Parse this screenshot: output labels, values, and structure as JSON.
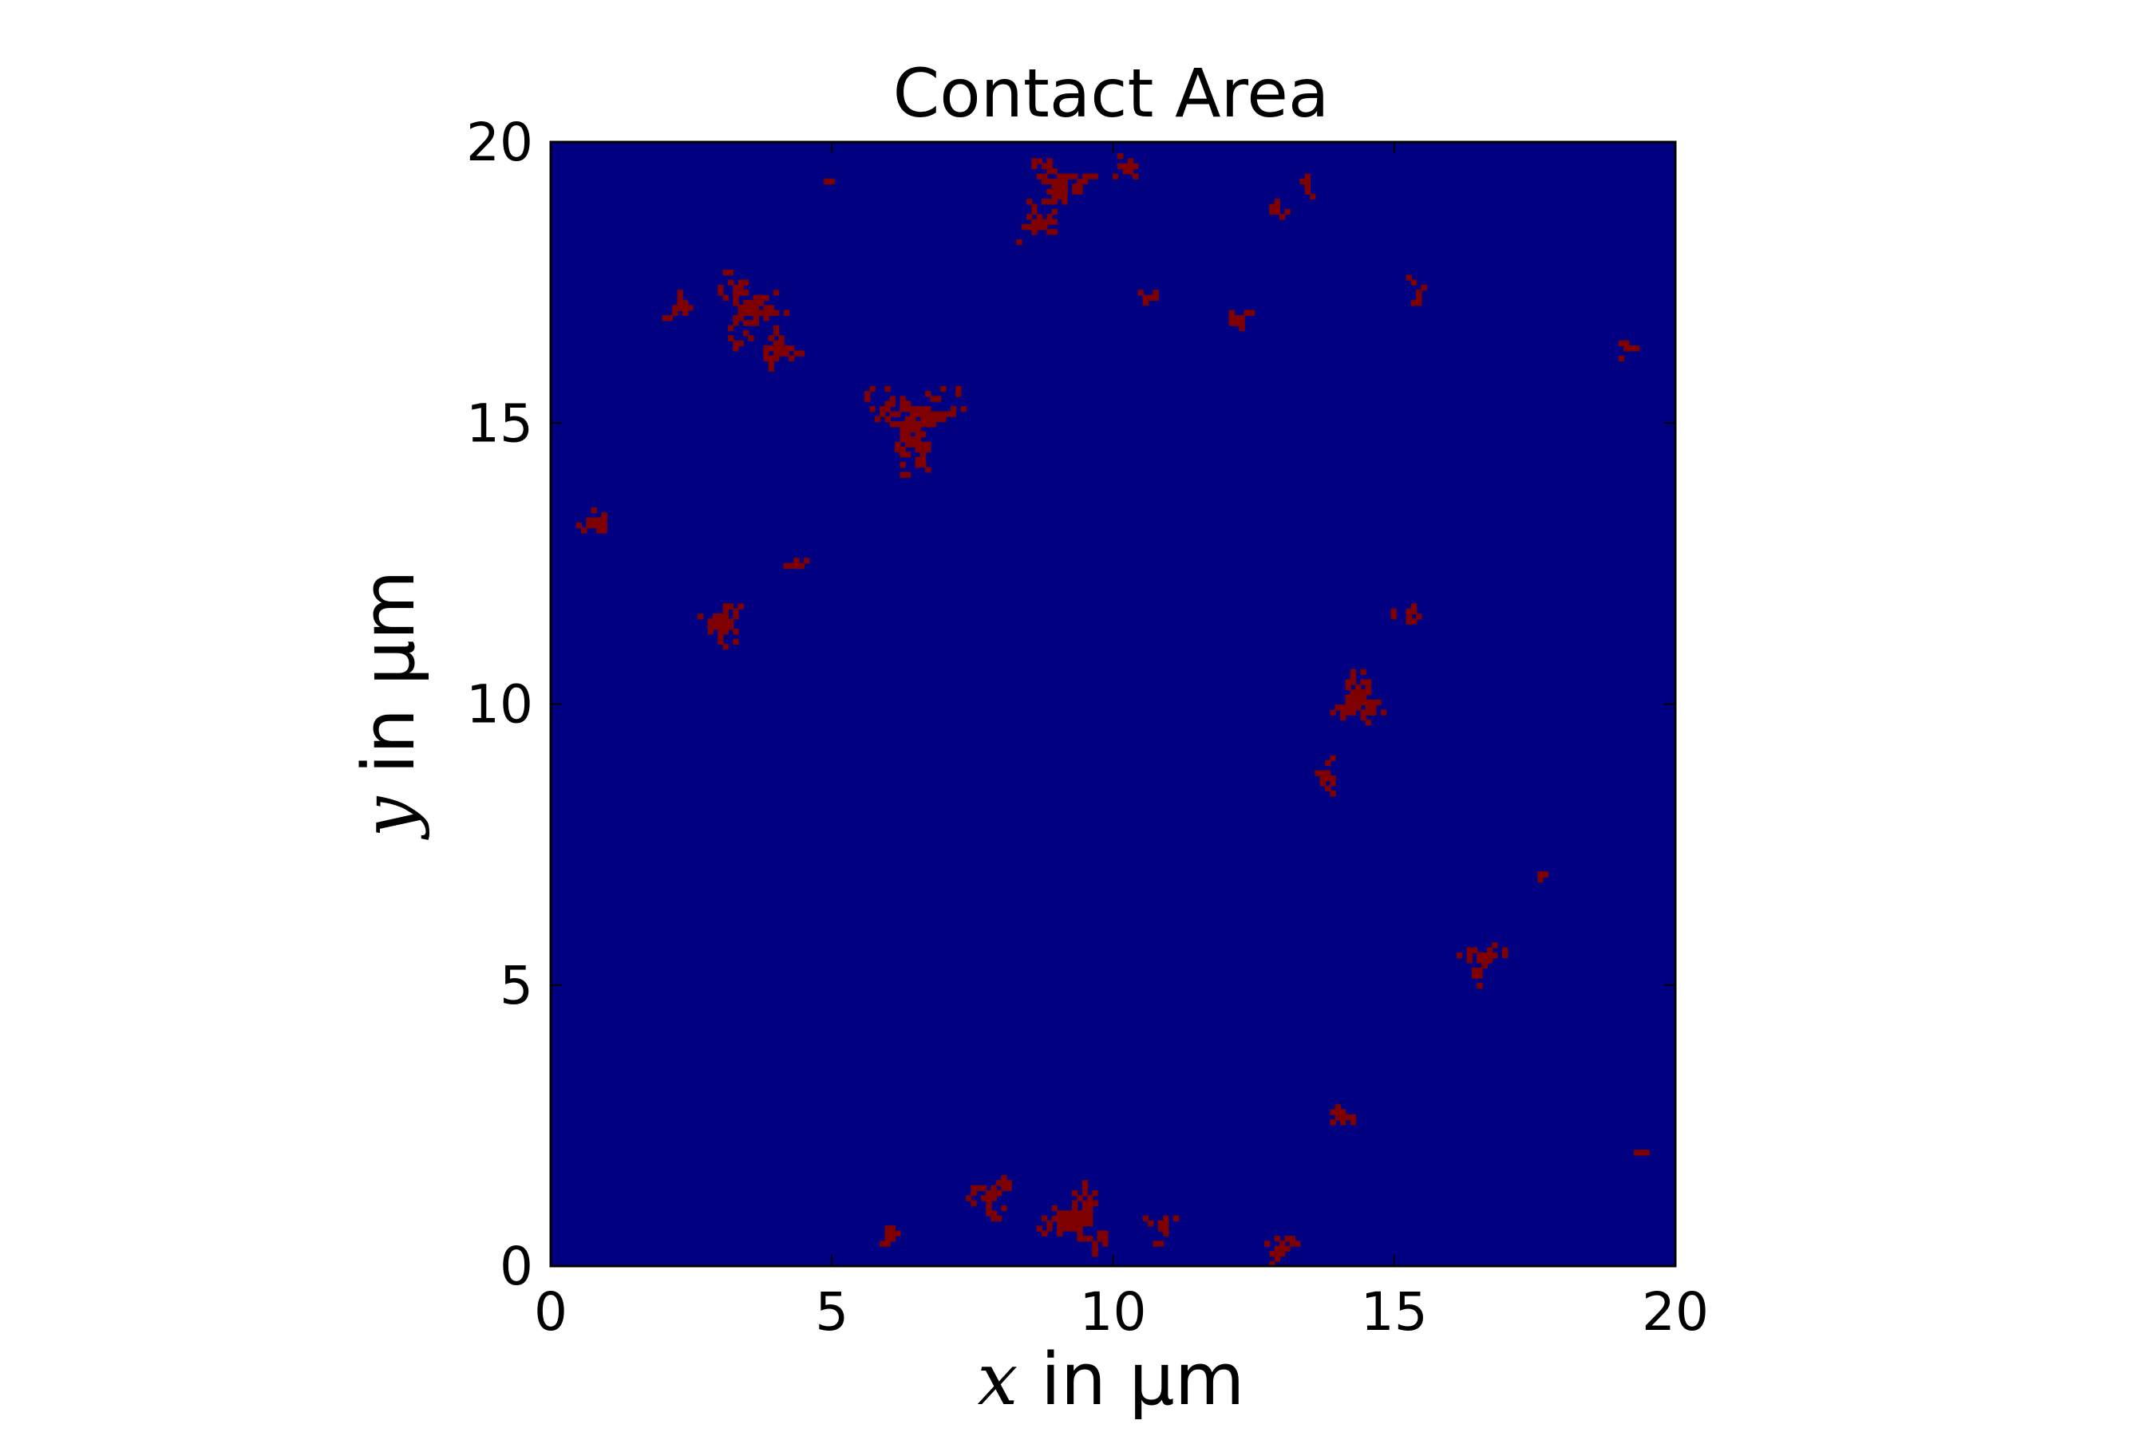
{
  "chart_data": {
    "type": "heatmap",
    "title": "Contact Area",
    "xlabel": {
      "var": "x",
      "text": " in µm"
    },
    "ylabel": {
      "var": "y",
      "text": " in µm"
    },
    "xlim": [
      0,
      20
    ],
    "ylim": [
      0,
      20
    ],
    "xticks": [
      0,
      5,
      10,
      15,
      20
    ],
    "yticks": [
      0,
      5,
      10,
      15,
      20
    ],
    "xtick_labels": [
      "0",
      "5",
      "10",
      "15",
      "20"
    ],
    "ytick_labels": [
      "0",
      "5",
      "10",
      "15",
      "20"
    ],
    "colormap": "jet",
    "values": [
      0,
      1
    ],
    "colors": {
      "no_contact": "#000080",
      "contact": "#7f0000"
    },
    "grid": false,
    "contact_patches": [
      {
        "x": 6.4,
        "y": 15.0,
        "size": 1.7
      },
      {
        "x": 3.5,
        "y": 17.0,
        "size": 1.3
      },
      {
        "x": 4.0,
        "y": 16.3,
        "size": 0.8
      },
      {
        "x": 2.3,
        "y": 17.0,
        "size": 0.6
      },
      {
        "x": 0.8,
        "y": 13.2,
        "size": 0.7
      },
      {
        "x": 3.0,
        "y": 11.4,
        "size": 0.9
      },
      {
        "x": 4.3,
        "y": 12.4,
        "size": 0.4
      },
      {
        "x": 9.0,
        "y": 19.2,
        "size": 1.1
      },
      {
        "x": 8.6,
        "y": 18.5,
        "size": 0.8
      },
      {
        "x": 10.2,
        "y": 19.5,
        "size": 0.5
      },
      {
        "x": 12.8,
        "y": 18.8,
        "size": 0.5
      },
      {
        "x": 13.4,
        "y": 19.2,
        "size": 0.4
      },
      {
        "x": 12.2,
        "y": 16.8,
        "size": 0.6
      },
      {
        "x": 10.6,
        "y": 17.2,
        "size": 0.4
      },
      {
        "x": 15.4,
        "y": 17.3,
        "size": 0.5
      },
      {
        "x": 19.1,
        "y": 16.3,
        "size": 0.4
      },
      {
        "x": 14.3,
        "y": 10.0,
        "size": 1.1
      },
      {
        "x": 13.7,
        "y": 8.7,
        "size": 0.6
      },
      {
        "x": 15.2,
        "y": 11.5,
        "size": 0.5
      },
      {
        "x": 16.5,
        "y": 5.4,
        "size": 0.8
      },
      {
        "x": 17.6,
        "y": 6.9,
        "size": 0.3
      },
      {
        "x": 14.0,
        "y": 2.6,
        "size": 0.5
      },
      {
        "x": 19.3,
        "y": 2.0,
        "size": 0.25
      },
      {
        "x": 9.3,
        "y": 0.8,
        "size": 1.3
      },
      {
        "x": 7.8,
        "y": 1.2,
        "size": 0.8
      },
      {
        "x": 10.8,
        "y": 0.7,
        "size": 0.6
      },
      {
        "x": 12.9,
        "y": 0.3,
        "size": 0.6
      },
      {
        "x": 6.0,
        "y": 0.5,
        "size": 0.5
      },
      {
        "x": 4.9,
        "y": 19.3,
        "size": 0.2
      }
    ]
  }
}
